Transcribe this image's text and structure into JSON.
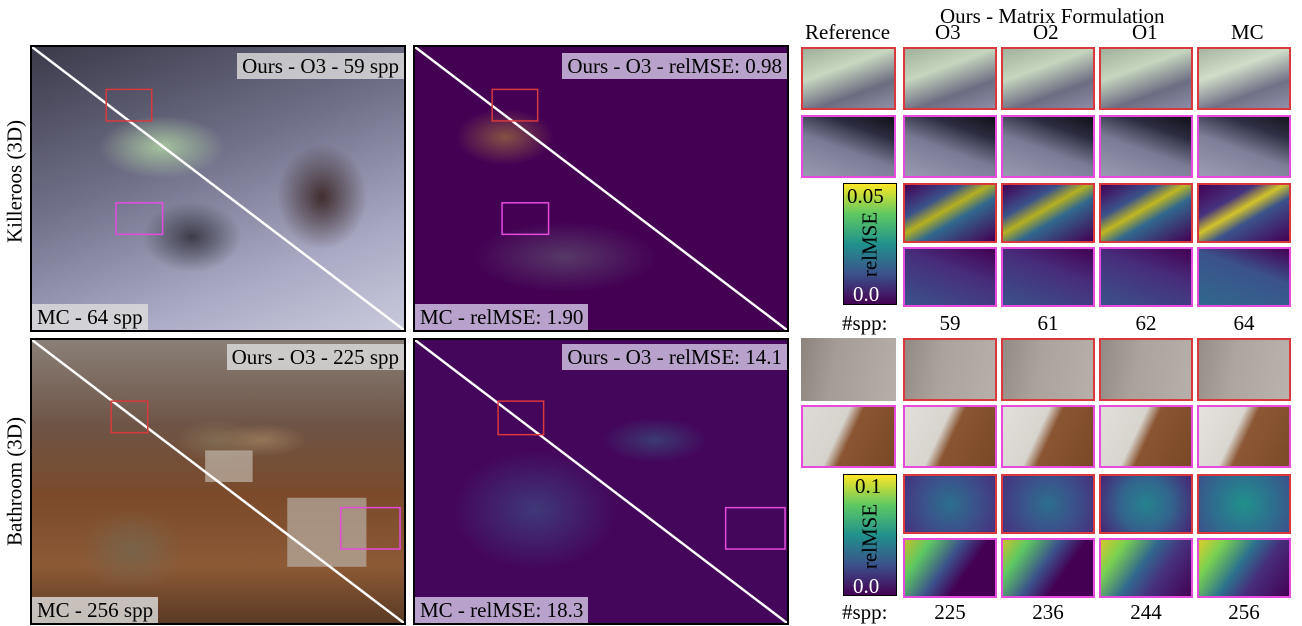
{
  "header": {
    "group_label": "Ours - Matrix Formulation",
    "columns": [
      "Reference",
      "O3",
      "O2",
      "O1",
      "MC"
    ]
  },
  "rows": [
    {
      "name": "Killeroos (3D)",
      "render_top_label": "Ours - O3 - 59 spp",
      "render_bottom_label": "MC - 64 spp",
      "error_top_label": "Ours - O3 - relMSE: 0.98",
      "error_bottom_label": "MC - relMSE: 1.90",
      "colorbar": {
        "max": "0.05",
        "min": "0.0",
        "label": "relMSE"
      },
      "spp_label": "#spp:",
      "spp": [
        "59",
        "61",
        "62",
        "64"
      ]
    },
    {
      "name": "Bathroom (3D)",
      "render_top_label": "Ours - O3 - 225 spp",
      "render_bottom_label": "MC - 256 spp",
      "error_top_label": "Ours - O3 - relMSE: 14.1",
      "error_bottom_label": "MC - relMSE: 18.3",
      "colorbar": {
        "max": "0.1",
        "min": "0.0",
        "label": "relMSE"
      },
      "spp_label": "#spp:",
      "spp": [
        "225",
        "236",
        "244",
        "256"
      ]
    }
  ],
  "colors": {
    "red_box": "#d9393c",
    "magenta_box": "#e64bde",
    "viridis_dark": "#440154",
    "viridis_yellow": "#fde725"
  }
}
